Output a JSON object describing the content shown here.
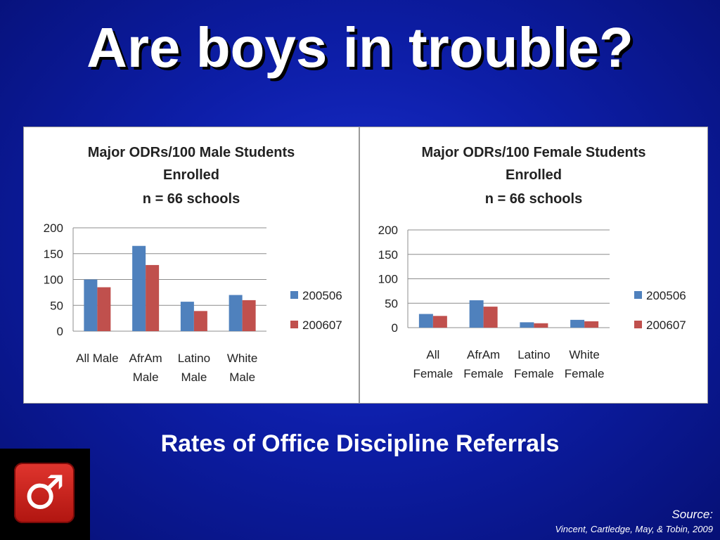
{
  "slide": {
    "title": "Are boys in trouble?",
    "subtitle": "Rates of Office Discipline Referrals",
    "source_label": "Source:",
    "source_text": "Vincent, Cartledge, May, & Tobin, 2009",
    "logo_icon": "male-symbol-icon",
    "logo_color": "#c41e18",
    "background_color": "#0d1ea8"
  },
  "chart_data": [
    {
      "type": "bar",
      "title_lines": [
        "Major ODRs/100 Male Students",
        "Enrolled",
        "n = 66 schools"
      ],
      "categories": [
        [
          "All Male"
        ],
        [
          "AfrAm",
          "Male"
        ],
        [
          "Latino",
          "Male"
        ],
        [
          "White",
          "Male"
        ]
      ],
      "series": [
        {
          "name": "200506",
          "color": "#4f81bd",
          "values": [
            100,
            165,
            57,
            70
          ]
        },
        {
          "name": "200607",
          "color": "#c0504d",
          "values": [
            85,
            128,
            39,
            60
          ]
        }
      ],
      "yticks": [
        0,
        50,
        100,
        150,
        200
      ],
      "ylim": [
        0,
        200
      ],
      "grid": true,
      "legend_position": "right"
    },
    {
      "type": "bar",
      "title_lines": [
        "Major ODRs/100 Female Students",
        "Enrolled",
        "n = 66 schools"
      ],
      "categories": [
        [
          "All",
          "Female"
        ],
        [
          "AfrAm",
          "Female"
        ],
        [
          "Latino",
          "Female"
        ],
        [
          "White",
          "Female"
        ]
      ],
      "series": [
        {
          "name": "200506",
          "color": "#4f81bd",
          "values": [
            28,
            56,
            11,
            16
          ]
        },
        {
          "name": "200607",
          "color": "#c0504d",
          "values": [
            24,
            43,
            9,
            13
          ]
        }
      ],
      "yticks": [
        0,
        50,
        100,
        150,
        200
      ],
      "ylim": [
        0,
        200
      ],
      "grid": true,
      "legend_position": "right"
    }
  ]
}
